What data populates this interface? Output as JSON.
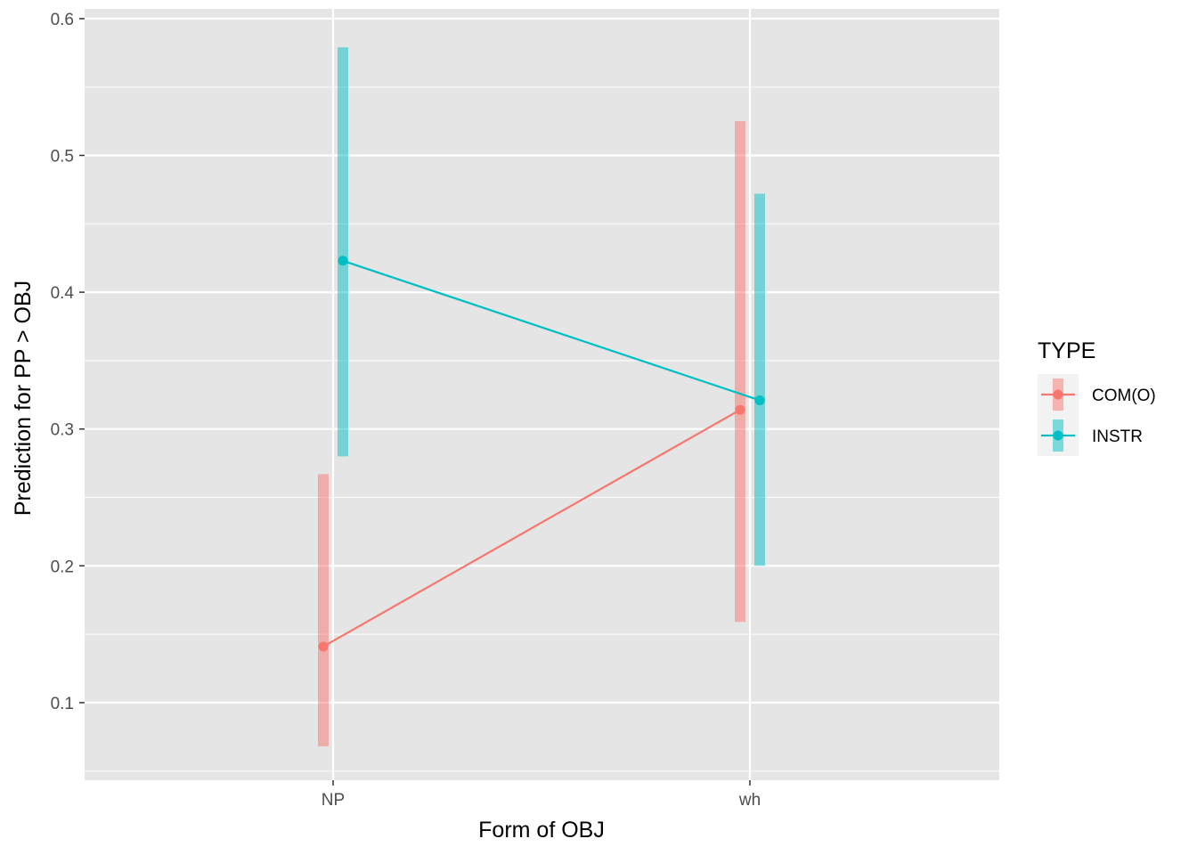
{
  "chart_data": {
    "type": "line",
    "xlabel": "Form of OBJ",
    "ylabel": "Prediction for PP > OBJ",
    "categories": [
      "NP",
      "wh"
    ],
    "ylim": [
      0.045,
      0.6
    ],
    "yticks": [
      0.1,
      0.2,
      0.3,
      0.4,
      0.5,
      0.6
    ],
    "grid": true,
    "legend": {
      "title": "TYPE",
      "position": "right"
    },
    "series": [
      {
        "name": "COM(O)",
        "color": "#F8766D",
        "values": [
          0.141,
          0.314
        ],
        "lower": [
          0.068,
          0.159
        ],
        "upper": [
          0.267,
          0.525
        ]
      },
      {
        "name": "INSTR",
        "color": "#00BFC4",
        "values": [
          0.423,
          0.321
        ],
        "lower": [
          0.28,
          0.2
        ],
        "upper": [
          0.579,
          0.472
        ]
      }
    ]
  }
}
